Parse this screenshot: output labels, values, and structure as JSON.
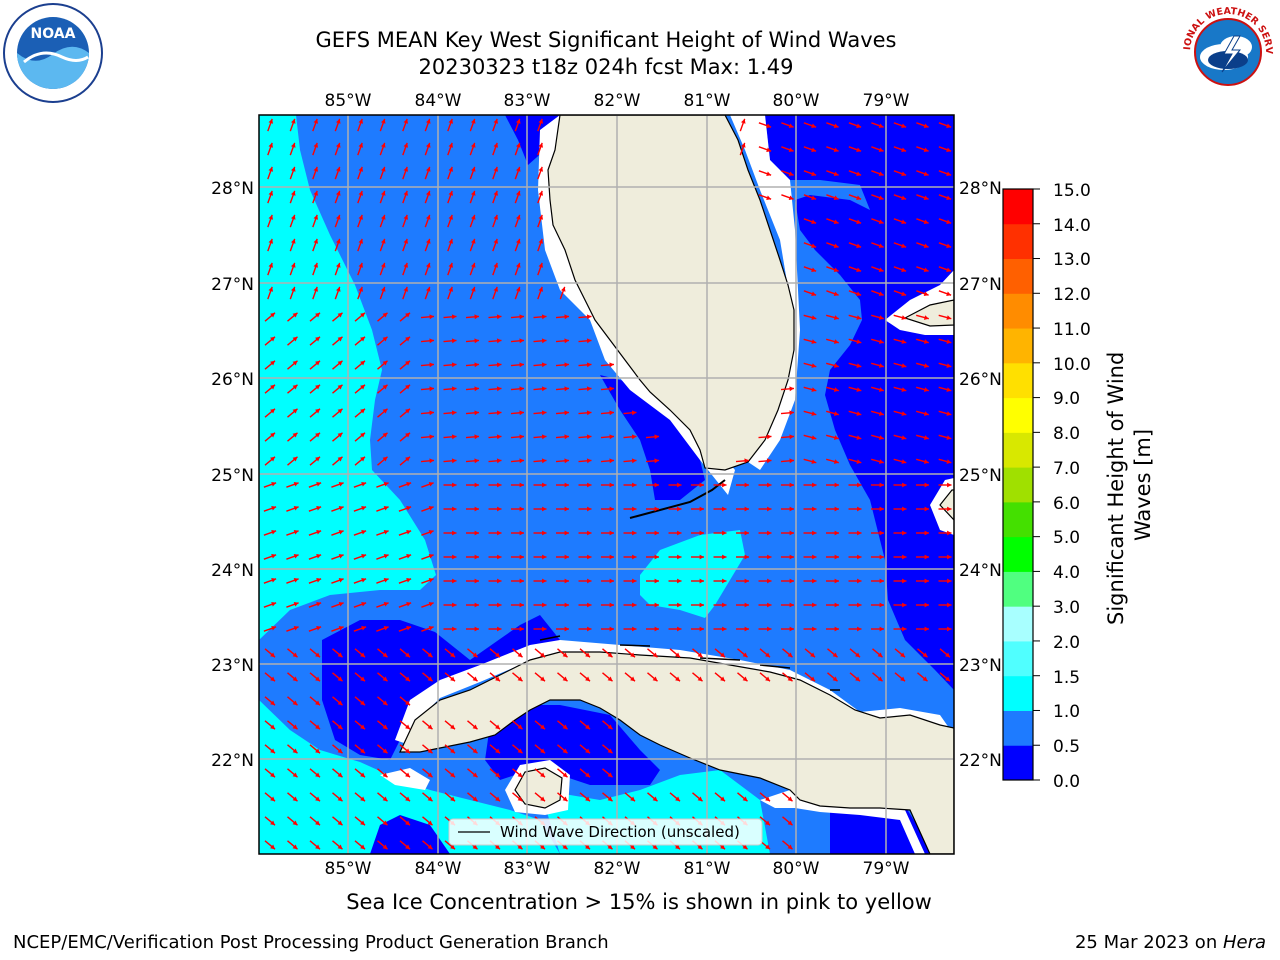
{
  "title_line1": "GEFS MEAN Key West Significant Height of Wind Waves",
  "title_line2": "20230323 t18z 024h fcst   Max: 1.49",
  "lon_labels": [
    "85°W",
    "84°W",
    "83°W",
    "82°W",
    "81°W",
    "80°W",
    "79°W"
  ],
  "lat_labels": [
    "28°N",
    "27°N",
    "26°N",
    "25°N",
    "24°N",
    "23°N",
    "22°N"
  ],
  "legend": {
    "line_label": "Wind Wave Direction (unscaled)",
    "arrow_color": "#ff0000"
  },
  "colorbar": {
    "title_line1": "Significant Height of Wind",
    "title_line2": "Waves [m]",
    "tick_labels": [
      "15.0",
      "14.0",
      "13.0",
      "12.0",
      "11.0",
      "10.0",
      "9.0",
      "8.0",
      "7.0",
      "6.0",
      "5.0",
      "4.0",
      "3.0",
      "2.0",
      "1.5",
      "1.0",
      "0.5",
      "0.0"
    ],
    "colors_bottom_to_top": [
      "#0000ff",
      "#1e7bff",
      "#00ffff",
      "#50ffff",
      "#a8ffff",
      "#50ff80",
      "#00ff00",
      "#44e000",
      "#a0e000",
      "#d8e800",
      "#ffff00",
      "#ffe000",
      "#ffb400",
      "#ff8c00",
      "#ff6000",
      "#ff3000",
      "#ff0000"
    ]
  },
  "map_colors": {
    "land": "#efeddc",
    "wave_0_0_5": "#0000ff",
    "wave_0_5_1_0": "#1e7bff",
    "wave_1_0_1_5": "#00ffff",
    "wave_1_5_2_0": "#50ffff",
    "grid": "#b0b0b0"
  },
  "ice_note": "Sea Ice Concentration > 15% is shown in pink to yellow",
  "footer_left": "NCEP/EMC/Verification Post Processing Product Generation Branch",
  "footer_right_date": "25 Mar 2023 on ",
  "footer_right_machine": "Hera",
  "logos": {
    "left": "NOAA",
    "right": "NATIONAL WEATHER SERVICE"
  }
}
